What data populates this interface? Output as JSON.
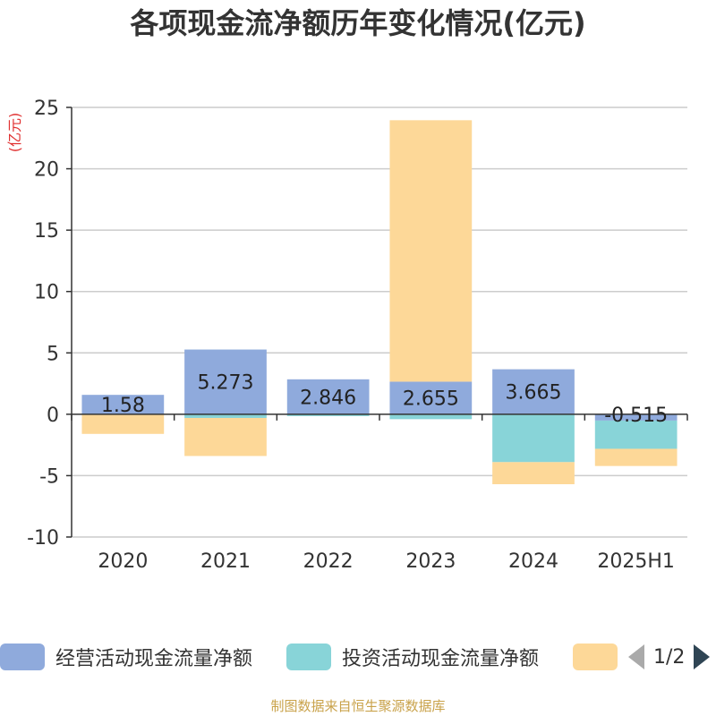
{
  "title": "各项现金流净额历年变化情况(亿元)",
  "source": "制图数据来自恒生聚源数据库",
  "chart_data": {
    "type": "bar",
    "stacked": true,
    "categories": [
      "2020",
      "2021",
      "2022",
      "2023",
      "2024",
      "2025H1"
    ],
    "ylabel": "(亿元)",
    "ylim": [
      -10,
      25
    ],
    "yticks": [
      25,
      20,
      15,
      10,
      5,
      0,
      -5,
      -10
    ],
    "grid": true,
    "series": [
      {
        "name": "经营活动现金流量净额",
        "color": "#8faadc",
        "values": [
          1.58,
          5.273,
          2.846,
          2.655,
          3.665,
          -0.515
        ],
        "labels": [
          "1.58",
          "5.273",
          "2.846",
          "2.655",
          "3.665",
          "-0.515"
        ]
      },
      {
        "name": "投资活动现金流量净额",
        "color": "#88d4d8",
        "values": [
          -0.05,
          -0.3,
          -0.15,
          -0.4,
          -3.9,
          -2.3
        ],
        "labels": []
      },
      {
        "name": "",
        "color": "#fdd898",
        "values": [
          -1.55,
          -3.1,
          0,
          21.3,
          -1.8,
          -1.4
        ],
        "labels": []
      }
    ]
  },
  "legend": {
    "placement": "bottom",
    "pager": "1/2"
  }
}
